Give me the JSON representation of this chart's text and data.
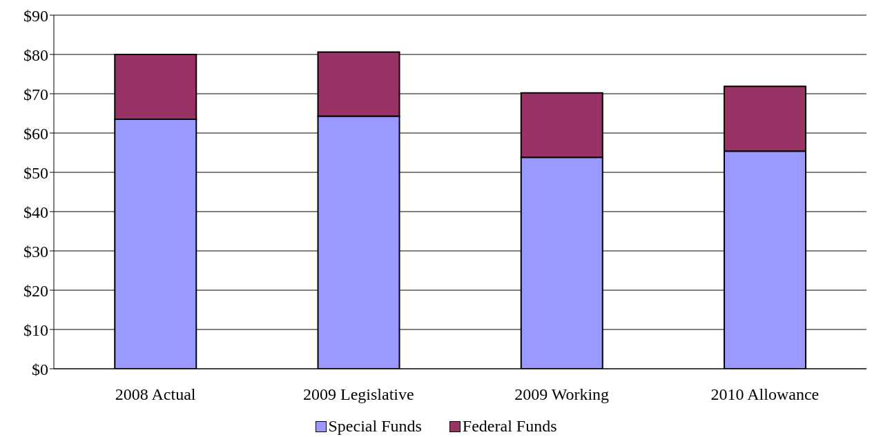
{
  "chart_data": {
    "type": "bar",
    "stacked": true,
    "categories": [
      "2008 Actual",
      "2009 Legislative",
      "2009 Working",
      "2010 Allowance"
    ],
    "series": [
      {
        "name": "Special Funds",
        "color": "#9999ff",
        "values": [
          63.5,
          64.3,
          53.8,
          55.4
        ]
      },
      {
        "name": "Federal Funds",
        "color": "#993366",
        "values": [
          16.5,
          16.3,
          16.4,
          16.5
        ]
      }
    ],
    "ylim": [
      0,
      90
    ],
    "yticks": [
      {
        "value": 0,
        "label": "$0"
      },
      {
        "value": 10,
        "label": "$10"
      },
      {
        "value": 20,
        "label": "$20"
      },
      {
        "value": 30,
        "label": "$30"
      },
      {
        "value": 40,
        "label": "$40"
      },
      {
        "value": 50,
        "label": "$50"
      },
      {
        "value": 60,
        "label": "$60"
      },
      {
        "value": 70,
        "label": "$70"
      },
      {
        "value": 80,
        "label": "$80"
      },
      {
        "value": 90,
        "label": "$90"
      }
    ],
    "grid": "y",
    "legend": "bottom"
  }
}
